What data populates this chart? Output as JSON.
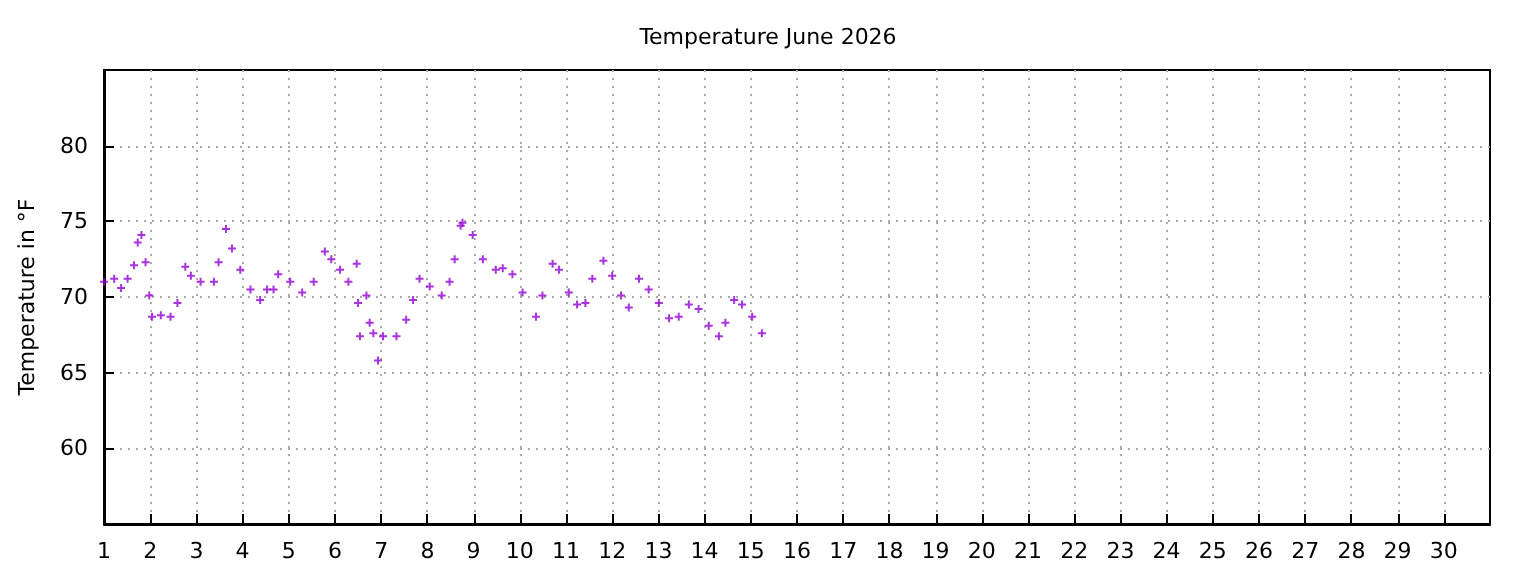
{
  "chart_data": {
    "type": "scatter",
    "title": "Temperature June 2026",
    "ylabel": "Temperature in °F",
    "xlim": [
      1,
      31
    ],
    "xticks": [
      1,
      2,
      3,
      4,
      5,
      6,
      7,
      8,
      9,
      10,
      11,
      12,
      13,
      14,
      15,
      16,
      17,
      18,
      19,
      20,
      21,
      22,
      23,
      24,
      25,
      26,
      27,
      28,
      29,
      30
    ],
    "ylim": [
      55,
      85
    ],
    "yticks": [
      60,
      65,
      70,
      75,
      80
    ],
    "grid": true,
    "marker": "cross",
    "series": [
      {
        "color": "#9400d3",
        "x": [
          1.0,
          1.22,
          1.37,
          1.51,
          1.65,
          1.73,
          1.81,
          1.9,
          1.98,
          2.04,
          2.23,
          2.44,
          2.59,
          2.76,
          2.88,
          3.09,
          3.38,
          3.48,
          3.64,
          3.77,
          3.95,
          4.17,
          4.38,
          4.53,
          4.67,
          4.77,
          5.03,
          5.29,
          5.54,
          5.78,
          5.92,
          6.11,
          6.29,
          6.47,
          6.5,
          6.54,
          6.68,
          6.75,
          6.83,
          6.93,
          7.04,
          7.33,
          7.54,
          7.69,
          7.83,
          8.05,
          8.31,
          8.48,
          8.59,
          8.72,
          8.76,
          8.98,
          9.2,
          9.48,
          9.63,
          9.84,
          10.06,
          10.35,
          10.49,
          10.71,
          10.85,
          11.06,
          11.24,
          11.42,
          11.57,
          11.81,
          12.0,
          12.19,
          12.36,
          12.58,
          12.79,
          13.01,
          13.23,
          13.44,
          13.66,
          13.87,
          14.09,
          14.31,
          14.45,
          14.64,
          14.81,
          15.03,
          15.24
        ],
        "values": [
          71.0,
          71.2,
          70.6,
          71.2,
          72.1,
          73.6,
          74.1,
          72.3,
          70.1,
          68.7,
          68.8,
          68.7,
          69.6,
          72.0,
          71.4,
          71.0,
          71.0,
          72.3,
          74.5,
          73.2,
          71.8,
          70.5,
          69.8,
          70.5,
          70.5,
          71.5,
          71.0,
          70.3,
          71.0,
          73.0,
          72.5,
          71.8,
          71.0,
          72.2,
          69.6,
          67.4,
          70.1,
          68.3,
          67.6,
          65.8,
          67.4,
          67.4,
          68.5,
          69.8,
          71.2,
          70.7,
          70.1,
          71.0,
          72.5,
          74.7,
          74.9,
          74.1,
          72.5,
          71.8,
          71.9,
          71.5,
          70.3,
          68.7,
          70.1,
          72.2,
          71.8,
          70.3,
          69.5,
          69.6,
          71.2,
          72.4,
          71.4,
          70.1,
          69.3,
          71.2,
          70.5,
          69.6,
          68.6,
          68.7,
          69.5,
          69.2,
          68.1,
          67.4,
          68.3,
          69.8,
          69.5,
          68.7,
          67.6
        ]
      }
    ]
  }
}
